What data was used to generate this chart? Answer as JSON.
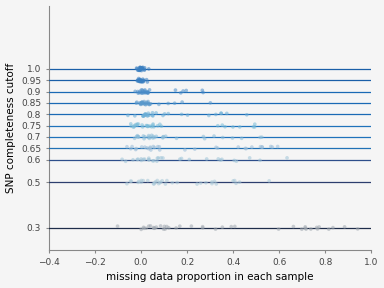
{
  "cutoff_levels": [
    1.0,
    0.95,
    0.9,
    0.85,
    0.8,
    0.75,
    0.7,
    0.65,
    0.6,
    0.5,
    0.3
  ],
  "xlabel": "missing data proportion in each sample",
  "ylabel": "SNP completeness cutoff",
  "yticks": [
    0.3,
    0.5,
    0.6,
    0.65,
    0.7,
    0.75,
    0.8,
    0.85,
    0.9,
    0.95,
    1.0
  ],
  "xlim": [
    -0.4,
    1.0
  ],
  "ylim": [
    0.2,
    1.28
  ],
  "background_color": "#f5f5f5",
  "seed": 42,
  "line_colors": [
    "#1a5fa8",
    "#1a5fa8",
    "#1a6ab5",
    "#1a6ab5",
    "#1a6ab5",
    "#1f72bb",
    "#1f72bb",
    "#2171b5",
    "#2d4e8a",
    "#2d3e6e",
    "#1e2d4a"
  ],
  "fill_colors": [
    "#6aafd4",
    "#7ab8d9",
    "#8ec4de",
    "#9ecae1",
    "#a8cfe3",
    "#b8d8ea",
    "#c2ddef",
    "#cce2f2",
    "#d4e8f4",
    "#deeef7",
    "#c8c8c8"
  ],
  "dot_colors": [
    "#3a7fc1",
    "#3a7fc1",
    "#4a8cc8",
    "#5a99cc",
    "#6baed6",
    "#7abcd8",
    "#8abcd8",
    "#9abcd8",
    "#9ec4d8",
    "#a8c8d8",
    "#a0a8b0"
  ],
  "ridge_heights": [
    0.28,
    0.24,
    0.22,
    0.2,
    0.18,
    0.17,
    0.16,
    0.15,
    0.14,
    0.12,
    0.1
  ],
  "data_spread": [
    0.02,
    0.02,
    0.04,
    0.06,
    0.08,
    0.1,
    0.12,
    0.14,
    0.16,
    0.2,
    0.3
  ],
  "n_samples": [
    25,
    25,
    28,
    30,
    30,
    32,
    32,
    32,
    32,
    35,
    40
  ]
}
